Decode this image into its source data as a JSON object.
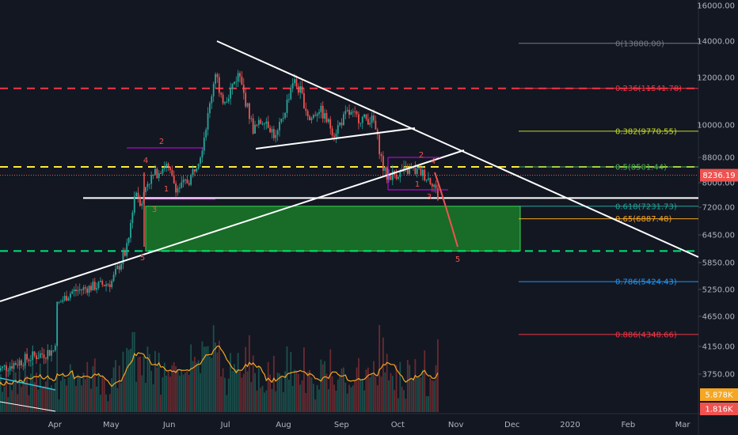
{
  "chart_data": {
    "type": "candlestick",
    "title": "",
    "y_axis": {
      "ticks": [
        "16000.00",
        "14000.00",
        "12000.00",
        "10000.00",
        "8800.00",
        "8000.00",
        "7200.00",
        "6450.00",
        "5850.00",
        "5250.00",
        "4650.00",
        "4150.00",
        "3750.00"
      ],
      "tick_values": [
        16000,
        14000,
        12000,
        10000,
        8800,
        8000,
        7200,
        6450,
        5850,
        5250,
        4650,
        4150,
        3750
      ],
      "ylim": [
        3300,
        16400
      ]
    },
    "x_axis": {
      "labels": [
        "Apr",
        "May",
        "Jun",
        "Jul",
        "Aug",
        "Sep",
        "Oct",
        "Nov",
        "Dec",
        "2020",
        "Feb",
        "Mar"
      ]
    },
    "price_series": {
      "name": "",
      "dates": [
        "2019-03-01",
        "2019-03-10",
        "2019-03-20",
        "2019-04-01",
        "2019-04-02",
        "2019-04-10",
        "2019-04-20",
        "2019-05-01",
        "2019-05-10",
        "2019-05-14",
        "2019-05-17",
        "2019-05-20",
        "2019-05-30",
        "2019-06-05",
        "2019-06-12",
        "2019-06-18",
        "2019-06-22",
        "2019-06-26",
        "2019-06-28",
        "2019-07-02",
        "2019-07-08",
        "2019-07-10",
        "2019-07-16",
        "2019-07-22",
        "2019-07-28",
        "2019-08-01",
        "2019-08-06",
        "2019-08-10",
        "2019-08-15",
        "2019-08-20",
        "2019-08-28",
        "2019-09-04",
        "2019-09-10",
        "2019-09-18",
        "2019-09-23",
        "2019-09-25",
        "2019-10-01",
        "2019-10-08",
        "2019-10-14",
        "2019-10-20",
        "2019-10-23"
      ],
      "values": [
        3800,
        3900,
        4000,
        4100,
        4900,
        5200,
        5300,
        5400,
        6200,
        7800,
        7300,
        8000,
        8600,
        7800,
        8100,
        9000,
        10500,
        12500,
        11000,
        11200,
        12200,
        11500,
        9800,
        10300,
        9500,
        10400,
        11900,
        11400,
        10200,
        10700,
        9700,
        10500,
        10300,
        10200,
        8500,
        8200,
        8300,
        8400,
        8300,
        8000,
        7400
      ]
    },
    "volume_series": {
      "name": "",
      "last_value_label": "5.878K",
      "secondary_value_label": "1.816K"
    },
    "current_price_label": "8236.19",
    "fib_levels": [
      {
        "label": "0(13880.00)",
        "value": 13880,
        "color": "#787b86"
      },
      {
        "label": "0.236(11541.78)",
        "value": 11541.78,
        "color": "#f23645"
      },
      {
        "label": "0.382(9770.55)",
        "value": 9770.55,
        "color": "#c4d929"
      },
      {
        "label": "0.5(8501.44)",
        "value": 8501.44,
        "color": "#4caf50"
      },
      {
        "label": "0.618(7231.73)",
        "value": 7231.73,
        "color": "#26a69a"
      },
      {
        "label": "0.65(6887.48)",
        "value": 6887.48,
        "color": "#f5a623"
      },
      {
        "label": "0.786(5424.43)",
        "value": 5424.43,
        "color": "#2196f3"
      },
      {
        "label": "0.886(4348.66)",
        "value": 4348.66,
        "color": "#f23645"
      }
    ],
    "horizontal_lines": [
      {
        "value": 11541.78,
        "color": "#f23645",
        "style": "dashed"
      },
      {
        "value": 8501.44,
        "color": "#ffeb3b",
        "style": "dashed"
      },
      {
        "value": 6100,
        "color": "#00e676",
        "style": "dashed"
      },
      {
        "value": 7500,
        "color": "#ffffff",
        "style": "solid"
      }
    ],
    "demand_zone": {
      "top": 7231.73,
      "bottom": 6100,
      "color": "#1b8a2a"
    },
    "wave_labels": [
      "4",
      "2",
      "1",
      "3",
      "5",
      "2",
      "4",
      "1",
      "3",
      "5"
    ],
    "grid": false,
    "legend": "none"
  },
  "colors": {
    "background": "#131722",
    "axis_text": "#b2b5be",
    "up": "#26a69a",
    "down": "#ef5350",
    "volume_ma": "#f5a623",
    "trendline": "#ffffff",
    "price_badge": "#ef5350",
    "volume_badge": "#f5a623",
    "volume_badge_2": "#ef5350"
  }
}
